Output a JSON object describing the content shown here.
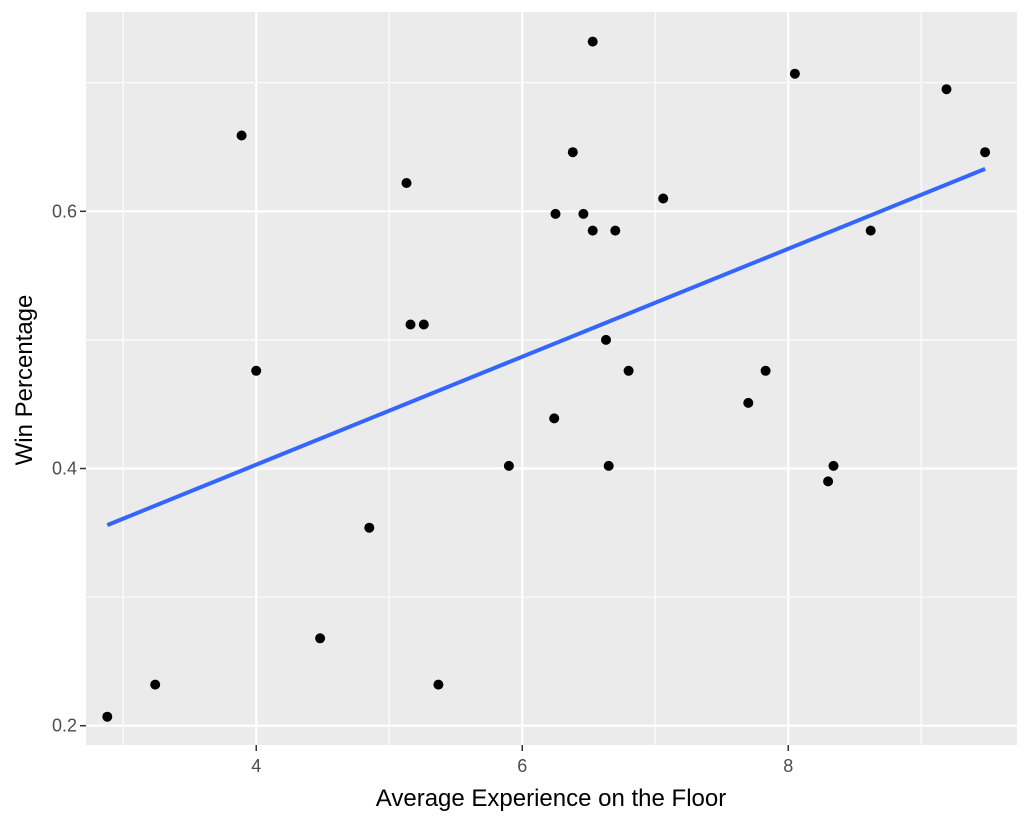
{
  "chart_data": {
    "type": "scatter",
    "title": "",
    "xlabel": "Average Experience on the Floor",
    "ylabel": "Win Percentage",
    "xlim": [
      2.72,
      9.72
    ],
    "ylim": [
      0.185,
      0.755
    ],
    "x_ticks": [
      4,
      6,
      8
    ],
    "x_minor_ticks": [
      3,
      5,
      7,
      9
    ],
    "y_ticks": [
      0.2,
      0.4,
      0.6
    ],
    "y_minor_ticks": [
      0.3,
      0.5,
      0.7
    ],
    "x_tick_labels": [
      "4",
      "6",
      "8"
    ],
    "y_tick_labels": [
      "0.2",
      "0.4",
      "0.6"
    ],
    "grid": true,
    "legend": "none",
    "colors": {
      "panel": "#ebebeb",
      "grid": "#ffffff",
      "point": "#000000",
      "trend": "#3366ff"
    },
    "points": [
      {
        "x": 2.88,
        "y": 0.207
      },
      {
        "x": 3.24,
        "y": 0.232
      },
      {
        "x": 3.89,
        "y": 0.659
      },
      {
        "x": 4.0,
        "y": 0.476
      },
      {
        "x": 4.48,
        "y": 0.268
      },
      {
        "x": 4.85,
        "y": 0.354
      },
      {
        "x": 5.13,
        "y": 0.622
      },
      {
        "x": 5.16,
        "y": 0.512
      },
      {
        "x": 5.26,
        "y": 0.512
      },
      {
        "x": 5.37,
        "y": 0.232
      },
      {
        "x": 5.9,
        "y": 0.402
      },
      {
        "x": 6.24,
        "y": 0.439
      },
      {
        "x": 6.25,
        "y": 0.598
      },
      {
        "x": 6.38,
        "y": 0.646
      },
      {
        "x": 6.46,
        "y": 0.598
      },
      {
        "x": 6.53,
        "y": 0.732
      },
      {
        "x": 6.53,
        "y": 0.585
      },
      {
        "x": 6.63,
        "y": 0.5
      },
      {
        "x": 6.65,
        "y": 0.402
      },
      {
        "x": 6.7,
        "y": 0.585
      },
      {
        "x": 6.8,
        "y": 0.476
      },
      {
        "x": 7.06,
        "y": 0.61
      },
      {
        "x": 7.7,
        "y": 0.451
      },
      {
        "x": 7.83,
        "y": 0.476
      },
      {
        "x": 8.05,
        "y": 0.707
      },
      {
        "x": 8.3,
        "y": 0.39
      },
      {
        "x": 8.34,
        "y": 0.402
      },
      {
        "x": 8.62,
        "y": 0.585
      },
      {
        "x": 9.19,
        "y": 0.695
      },
      {
        "x": 9.48,
        "y": 0.646
      }
    ],
    "trend_line": {
      "x": [
        2.88,
        9.48
      ],
      "y": [
        0.356,
        0.633
      ]
    }
  }
}
